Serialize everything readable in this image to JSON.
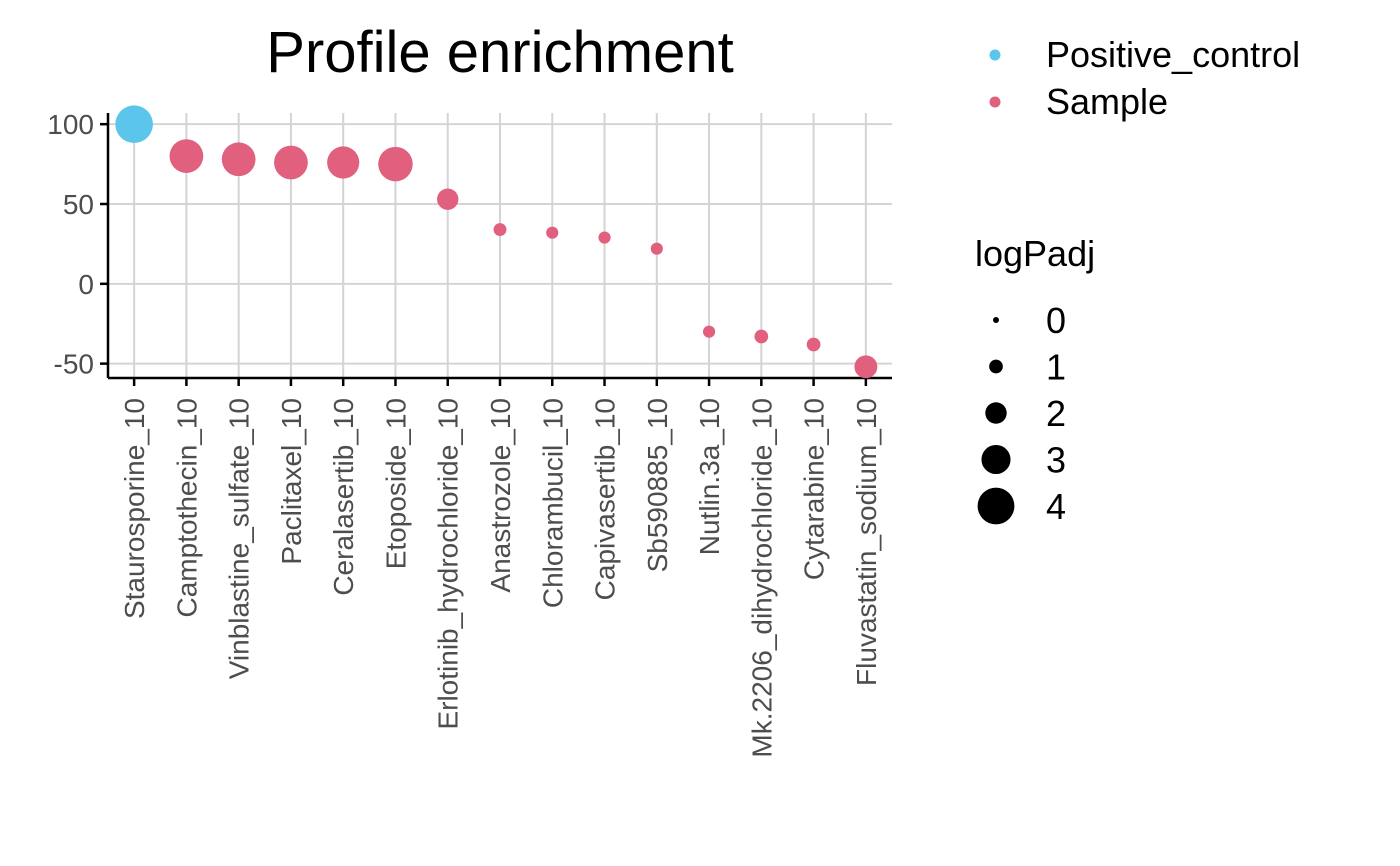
{
  "chart_data": {
    "type": "scatter",
    "title": "Profile enrichment",
    "xlabel": "",
    "ylabel": "",
    "ylim": [
      -59,
      107
    ],
    "yticks": [
      100,
      50,
      0,
      -50
    ],
    "grid": true,
    "categories": [
      "Staurosporine_10",
      "Camptothecin_10",
      "Vinblastine_sulfate_10",
      "Paclitaxel_10",
      "Ceralasertib_10",
      "Etoposide_10",
      "Erlotinib_hydrochloride_10",
      "Anastrozole_10",
      "Chlorambucil_10",
      "Capivasertib_10",
      "Sb590885_10",
      "Nutlin.3a_10",
      "Mk.2206_dihydrochloride_10",
      "Cytarabine_10",
      "Fluvastatin_sodium_10"
    ],
    "points": [
      {
        "x": "Staurosporine_10",
        "y": 100,
        "logPadj": 4.1,
        "type": "Positive_control"
      },
      {
        "x": "Camptothecin_10",
        "y": 80,
        "logPadj": 3.6,
        "type": "Sample"
      },
      {
        "x": "Vinblastine_sulfate_10",
        "y": 78,
        "logPadj": 3.6,
        "type": "Sample"
      },
      {
        "x": "Paclitaxel_10",
        "y": 76,
        "logPadj": 3.6,
        "type": "Sample"
      },
      {
        "x": "Ceralasertib_10",
        "y": 76,
        "logPadj": 3.4,
        "type": "Sample"
      },
      {
        "x": "Etoposide_10",
        "y": 75,
        "logPadj": 3.7,
        "type": "Sample"
      },
      {
        "x": "Erlotinib_hydrochloride_10",
        "y": 53,
        "logPadj": 2.0,
        "type": "Sample"
      },
      {
        "x": "Anastrozole_10",
        "y": 34,
        "logPadj": 0.9,
        "type": "Sample"
      },
      {
        "x": "Chlorambucil_10",
        "y": 32,
        "logPadj": 0.8,
        "type": "Sample"
      },
      {
        "x": "Capivasertib_10",
        "y": 29,
        "logPadj": 0.8,
        "type": "Sample"
      },
      {
        "x": "Sb590885_10",
        "y": 22,
        "logPadj": 0.8,
        "type": "Sample"
      },
      {
        "x": "Nutlin.3a_10",
        "y": -30,
        "logPadj": 0.8,
        "type": "Sample"
      },
      {
        "x": "Mk.2206_dihydrochloride_10",
        "y": -33,
        "logPadj": 1.0,
        "type": "Sample"
      },
      {
        "x": "Cytarabine_10",
        "y": -38,
        "logPadj": 1.0,
        "type": "Sample"
      },
      {
        "x": "Fluvastatin_sodium_10",
        "y": -52,
        "logPadj": 2.2,
        "type": "Sample"
      }
    ],
    "legend_color": {
      "title": "",
      "placement": "right",
      "entries": [
        {
          "label": "Positive_control",
          "color": "#5BC5EC"
        },
        {
          "label": "Sample",
          "color": "#E0607E"
        }
      ]
    },
    "legend_size": {
      "title": "logPadj",
      "placement": "right",
      "entries": [
        {
          "label": "0",
          "value": 0
        },
        {
          "label": "1",
          "value": 1
        },
        {
          "label": "2",
          "value": 2
        },
        {
          "label": "3",
          "value": 3
        },
        {
          "label": "4",
          "value": 4
        }
      ]
    }
  }
}
